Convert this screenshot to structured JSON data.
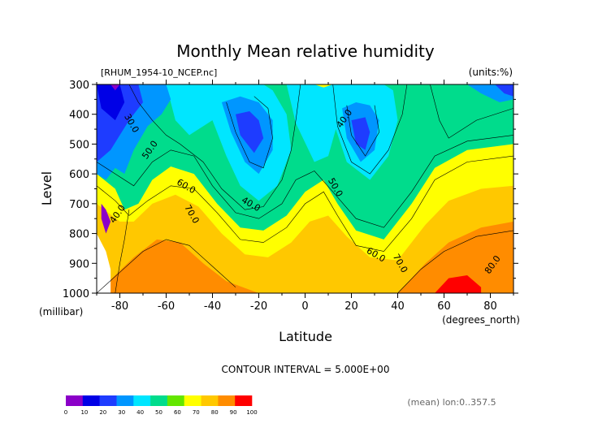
{
  "chart_data": {
    "type": "heatmap",
    "title": "Monthly Mean relative humidity",
    "subtitle": "[RHUM_1954-10_NCEP.nc]",
    "units": "(units:%)",
    "xlabel": "Latitude",
    "xunits": "(degrees_north)",
    "ylabel": "Level",
    "yunits": "(millibar)",
    "xlim": [
      -90,
      90
    ],
    "ylim": [
      1000,
      300
    ],
    "x_ticks": [
      "-80",
      "-60",
      "-40",
      "-20",
      "0",
      "20",
      "40",
      "60",
      "80"
    ],
    "x_tick_values": [
      -80,
      -60,
      -40,
      -20,
      0,
      20,
      40,
      60,
      80
    ],
    "y_ticks": [
      "300",
      "400",
      "500",
      "600",
      "700",
      "800",
      "900",
      "1000"
    ],
    "y_tick_values": [
      300,
      400,
      500,
      600,
      700,
      800,
      900,
      1000
    ],
    "contour_interval_text": "CONTOUR INTERVAL = 5.000E+00",
    "footnote": "(mean) lon:0..357.5",
    "contour_labels": [
      {
        "text": "30.0",
        "lat": -76,
        "level": 435
      },
      {
        "text": "50.0",
        "lat": -66,
        "level": 525
      },
      {
        "text": "60.0",
        "lat": -52,
        "level": 650
      },
      {
        "text": "70.0",
        "lat": -50,
        "level": 740
      },
      {
        "text": "40.0",
        "lat": -80,
        "level": 740
      },
      {
        "text": "40.0",
        "lat": -24,
        "level": 710
      },
      {
        "text": "50.0",
        "lat": 12,
        "level": 650
      },
      {
        "text": "40.0",
        "lat": 18,
        "level": 420
      },
      {
        "text": "60.0",
        "lat": 30,
        "level": 880
      },
      {
        "text": "70.0",
        "lat": 40,
        "level": 905
      },
      {
        "text": "80.0",
        "lat": 82,
        "level": 910
      }
    ],
    "colorbar": {
      "labels": [
        "0",
        "10",
        "20",
        "30",
        "40",
        "50",
        "60",
        "70",
        "80",
        "90",
        "100"
      ],
      "colors": [
        "#8b00c8",
        "#0000e6",
        "#1e3cff",
        "#0096ff",
        "#00e6ff",
        "#00dc8c",
        "#64e600",
        "#ffff00",
        "#ffc800",
        "#ff8c00",
        "#ff0000"
      ]
    },
    "grid": false,
    "legend": "bottom-left colorbar"
  }
}
